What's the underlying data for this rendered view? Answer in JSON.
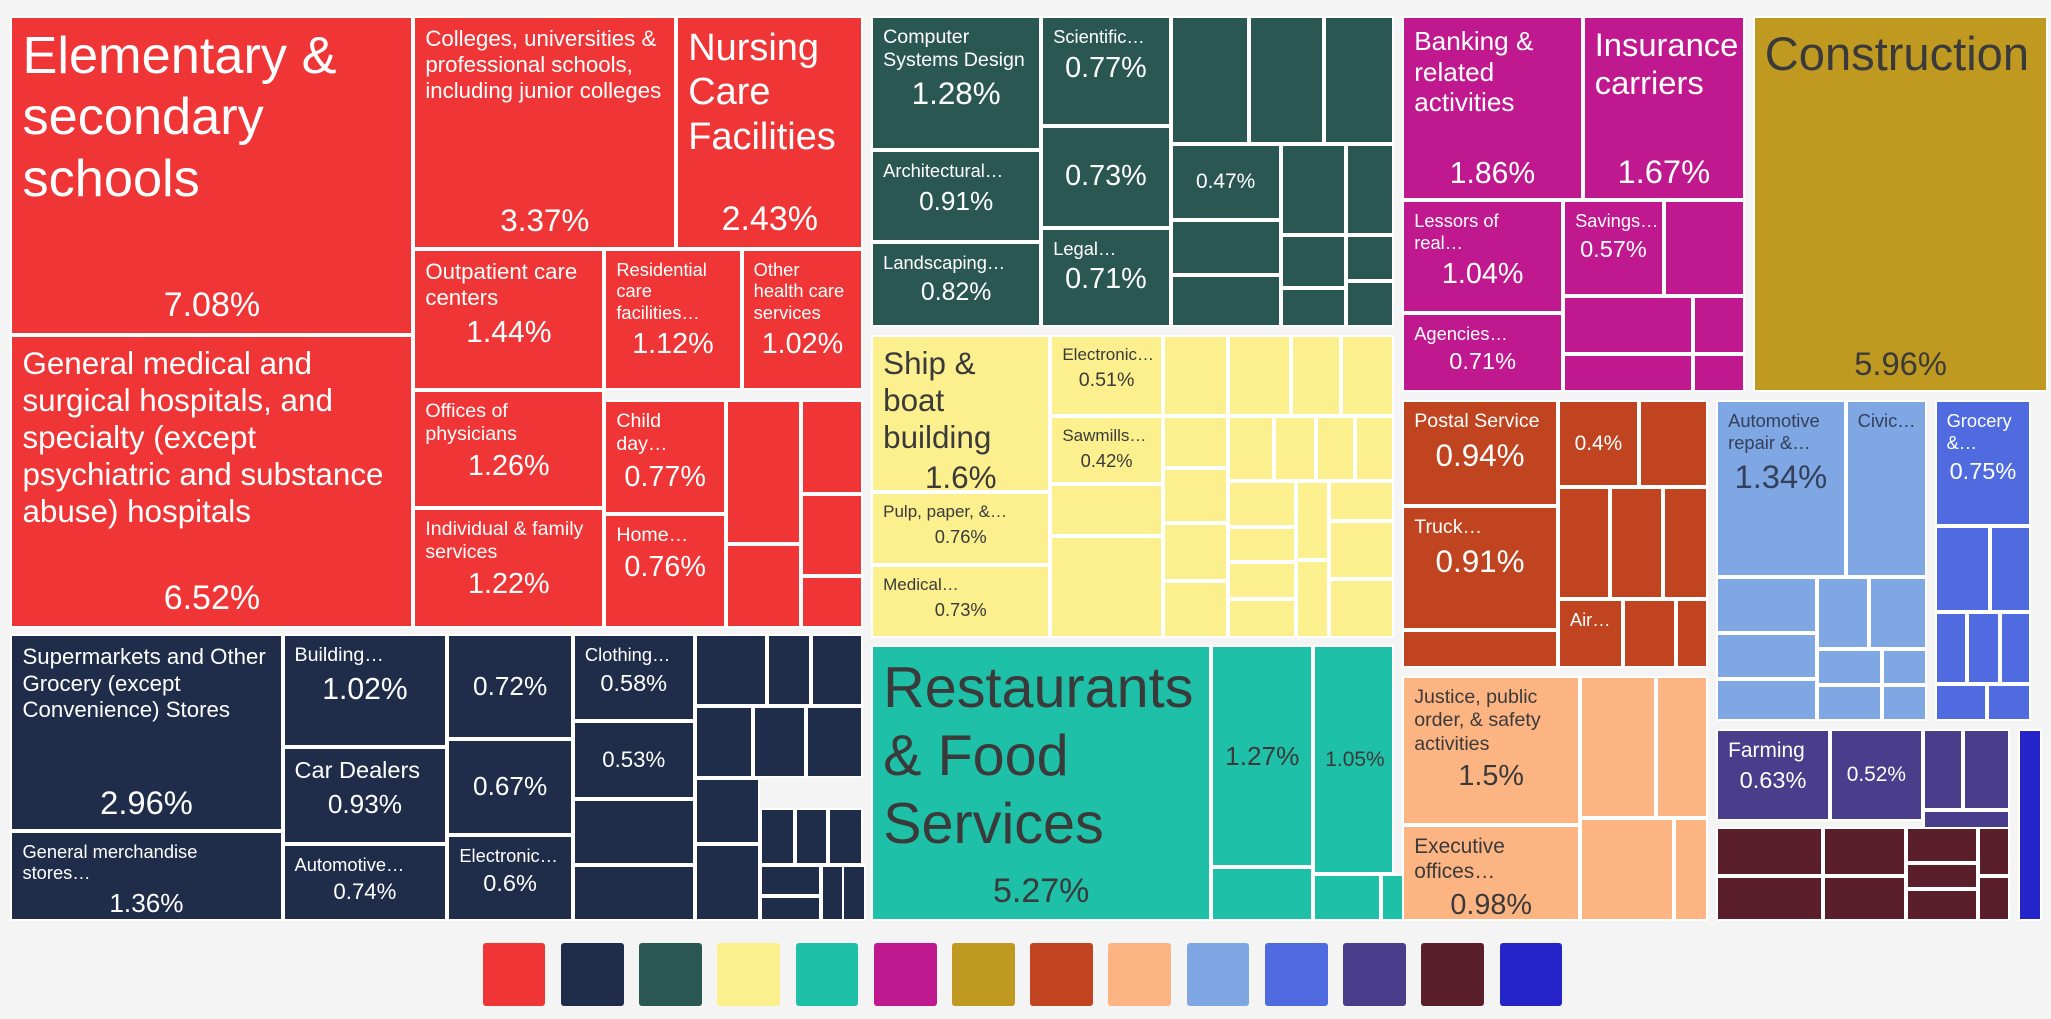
{
  "chart_data": {
    "type": "treemap",
    "groups": [
      {
        "color": "#ef3535",
        "text_color": "#ffffff",
        "cells": [
          {
            "name": "Elementary & secondary schools",
            "value": 7.08,
            "value_label": "7.08%"
          },
          {
            "name": "General medical and surgical hospitals, and specialty (except psychiatric and substance abuse) hospitals",
            "value": 6.52,
            "value_label": "6.52%"
          },
          {
            "name": "Colleges, universities & professional schools, including junior colleges",
            "value": 3.37,
            "value_label": "3.37%"
          },
          {
            "name": "Nursing Care Facilities",
            "value": 2.43,
            "value_label": "2.43%"
          },
          {
            "name": "Outpatient care centers",
            "value": 1.44,
            "value_label": "1.44%"
          },
          {
            "name": "Residential care facilities…",
            "value": 1.12,
            "value_label": "1.12%"
          },
          {
            "name": "Other health care services",
            "value": 1.02,
            "value_label": "1.02%"
          },
          {
            "name": "Offices of physicians",
            "value": 1.26,
            "value_label": "1.26%"
          },
          {
            "name": "Individual & family services",
            "value": 1.22,
            "value_label": "1.22%"
          },
          {
            "name": "Child day…",
            "value": 0.77,
            "value_label": "0.77%"
          },
          {
            "name": "Home…",
            "value": 0.76,
            "value_label": "0.76%"
          }
        ]
      },
      {
        "color": "#1f2d4a",
        "text_color": "#ffffff",
        "cells": [
          {
            "name": "Supermarkets and Other Grocery (except Convenience) Stores",
            "value": 2.96,
            "value_label": "2.96%"
          },
          {
            "name": "General merchandise stores…",
            "value": 1.36,
            "value_label": "1.36%"
          },
          {
            "name": "Building…",
            "value": 1.02,
            "value_label": "1.02%"
          },
          {
            "name": "Car Dealers",
            "value": 0.93,
            "value_label": "0.93%"
          },
          {
            "name": "Automotive…",
            "value": 0.74,
            "value_label": "0.74%"
          },
          {
            "name": null,
            "value": 0.72,
            "value_label": "0.72%"
          },
          {
            "name": null,
            "value": 0.67,
            "value_label": "0.67%"
          },
          {
            "name": "Electronic…",
            "value": 0.6,
            "value_label": "0.6%"
          },
          {
            "name": "Clothing…",
            "value": 0.58,
            "value_label": "0.58%"
          },
          {
            "name": null,
            "value": 0.53,
            "value_label": "0.53%"
          }
        ]
      },
      {
        "color": "#2b5752",
        "text_color": "#ffffff",
        "cells": [
          {
            "name": "Computer Systems Design",
            "value": 1.28,
            "value_label": "1.28%"
          },
          {
            "name": "Architectural…",
            "value": 0.91,
            "value_label": "0.91%"
          },
          {
            "name": "Landscaping…",
            "value": 0.82,
            "value_label": "0.82%"
          },
          {
            "name": "Scientific…",
            "value": 0.77,
            "value_label": "0.77%"
          },
          {
            "name": null,
            "value": 0.73,
            "value_label": "0.73%"
          },
          {
            "name": "Legal…",
            "value": 0.71,
            "value_label": "0.71%"
          },
          {
            "name": null,
            "value": 0.47,
            "value_label": "0.47%"
          }
        ]
      },
      {
        "color": "#fbef8e",
        "text_color": "#3a3a3a",
        "cells": [
          {
            "name": "Ship & boat building",
            "value": 1.6,
            "value_label": "1.6%"
          },
          {
            "name": "Pulp, paper, &…",
            "value": 0.76,
            "value_label": "0.76%"
          },
          {
            "name": "Medical…",
            "value": 0.73,
            "value_label": "0.73%"
          },
          {
            "name": "Electronic…",
            "value": 0.51,
            "value_label": "0.51%"
          },
          {
            "name": "Sawmills…",
            "value": 0.42,
            "value_label": "0.42%"
          }
        ]
      },
      {
        "color": "#1fc0a8",
        "text_color": "#3a3a3a",
        "cells": [
          {
            "name": "Restaurants & Food Services",
            "value": 5.27,
            "value_label": "5.27%"
          },
          {
            "name": null,
            "value": 1.27,
            "value_label": "1.27%"
          },
          {
            "name": null,
            "value": 1.05,
            "value_label": "1.05%"
          }
        ]
      },
      {
        "color": "#c0198f",
        "text_color": "#ffffff",
        "cells": [
          {
            "name": "Banking & related activities",
            "value": 1.86,
            "value_label": "1.86%"
          },
          {
            "name": "Insurance carriers",
            "value": 1.67,
            "value_label": "1.67%"
          },
          {
            "name": "Lessors of real…",
            "value": 1.04,
            "value_label": "1.04%"
          },
          {
            "name": "Savings…",
            "value": 0.57,
            "value_label": "0.57%"
          },
          {
            "name": "Agencies…",
            "value": 0.71,
            "value_label": "0.71%"
          }
        ]
      },
      {
        "color": "#c09a20",
        "text_color": "#3a3a3a",
        "cells": [
          {
            "name": "Construction",
            "value": 5.96,
            "value_label": "5.96%"
          }
        ]
      },
      {
        "color": "#c0441f",
        "text_color": "#ffffff",
        "cells": [
          {
            "name": "Postal Service",
            "value": 0.94,
            "value_label": "0.94%"
          },
          {
            "name": "Truck…",
            "value": 0.91,
            "value_label": "0.91%"
          },
          {
            "name": null,
            "value": 0.4,
            "value_label": "0.4%"
          },
          {
            "name": "Air…",
            "value": 0.26
          }
        ]
      },
      {
        "color": "#fdb483",
        "text_color": "#3a3a3a",
        "cells": [
          {
            "name": "Justice, public order, & safety activities",
            "value": 1.5,
            "value_label": "1.5%"
          },
          {
            "name": "Executive offices…",
            "value": 0.98,
            "value_label": "0.98%"
          }
        ]
      },
      {
        "color": "#7fa7e3",
        "text_color": "#34405a",
        "cells": [
          {
            "name": "Automotive repair &…",
            "value": 1.34,
            "value_label": "1.34%"
          },
          {
            "name": "Civic…",
            "value": 0.84
          }
        ]
      },
      {
        "color": "#506be0",
        "text_color": "#ffffff",
        "cells": [
          {
            "name": "Grocery &…",
            "value": 0.75,
            "value_label": "0.75%"
          }
        ]
      },
      {
        "color": "#4a3d8b",
        "text_color": "#ffffff",
        "cells": [
          {
            "name": "Farming",
            "value": 0.63,
            "value_label": "0.63%"
          },
          {
            "name": null,
            "value": 0.52,
            "value_label": "0.52%"
          }
        ]
      },
      {
        "color": "#5a1f2b",
        "text_color": "#ffffff",
        "cells": []
      },
      {
        "color": "#2424c8",
        "text_color": "#ffffff",
        "cells": []
      }
    ]
  }
}
